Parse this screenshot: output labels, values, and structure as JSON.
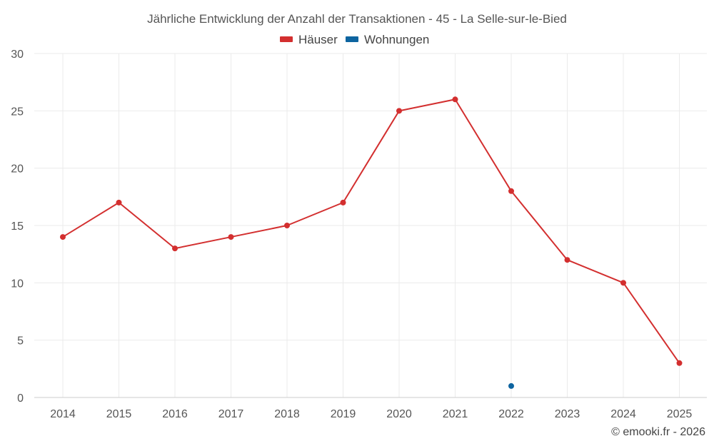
{
  "chart_data": {
    "type": "line",
    "title": "Jährliche Entwicklung der Anzahl der Transaktionen - 45 - La Selle-sur-le-Bied",
    "categories": [
      "2014",
      "2015",
      "2016",
      "2017",
      "2018",
      "2019",
      "2020",
      "2021",
      "2022",
      "2023",
      "2024",
      "2025"
    ],
    "ylim": [
      0,
      30
    ],
    "yticks": [
      "0",
      "5",
      "10",
      "15",
      "20",
      "25",
      "30"
    ],
    "grid": true,
    "legend_position": "top-center",
    "series": [
      {
        "name": "Häuser",
        "color": "#d32f2f",
        "values": [
          14,
          17,
          13,
          14,
          15,
          17,
          25,
          26,
          18,
          12,
          10,
          3
        ]
      },
      {
        "name": "Wohnungen",
        "color": "#0d64a0",
        "values": [
          null,
          null,
          null,
          null,
          null,
          null,
          null,
          null,
          1,
          null,
          null,
          null
        ]
      }
    ]
  },
  "credit": "© emooki.fr - 2026"
}
